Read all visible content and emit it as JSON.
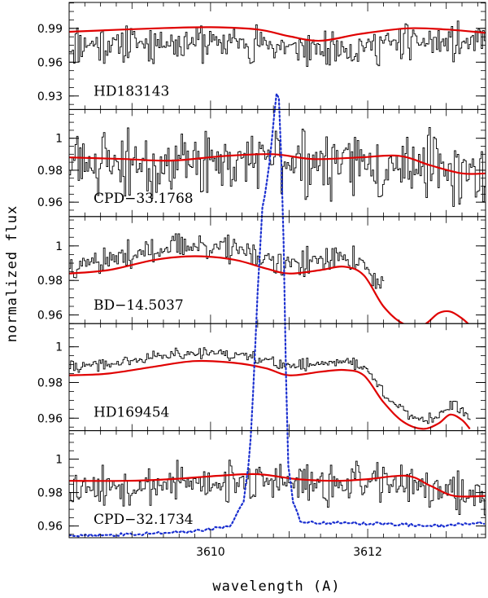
{
  "chart_data": {
    "type": "line",
    "xlabel": "wavelength (A)",
    "ylabel": "normalized flux",
    "xlim": [
      3608.2,
      3613.5
    ],
    "x_ticks": [
      3610,
      3612
    ],
    "grid": false,
    "colors": {
      "observed": "#000000",
      "model": "#e00000",
      "overlay": "#1a2fd0"
    },
    "panels": [
      {
        "label": "HD183143",
        "ylim": [
          0.918,
          1.013
        ],
        "y_ticks": [
          "0.93",
          "0.96",
          "0.99"
        ],
        "observed": {
          "style": "steps",
          "mean": 0.978,
          "noise": 0.026,
          "seed": 11
        },
        "model": [
          [
            3608.2,
            0.987
          ],
          [
            3609.3,
            0.99
          ],
          [
            3610.0,
            0.991
          ],
          [
            3610.6,
            0.989
          ],
          [
            3611.0,
            0.983
          ],
          [
            3611.4,
            0.979
          ],
          [
            3611.9,
            0.985
          ],
          [
            3612.5,
            0.99
          ],
          [
            3613.0,
            0.989
          ],
          [
            3613.5,
            0.986
          ]
        ]
      },
      {
        "label": "CPD−33.1768",
        "ylim": [
          0.951,
          1.018
        ],
        "y_ticks": [
          "0.96",
          "0.98",
          "1"
        ],
        "observed": {
          "style": "steps",
          "mean": 0.984,
          "noise": 0.032,
          "seed": 23
        },
        "model": [
          [
            3608.2,
            0.988
          ],
          [
            3608.9,
            0.987
          ],
          [
            3609.5,
            0.986
          ],
          [
            3610.2,
            0.989
          ],
          [
            3610.8,
            0.99
          ],
          [
            3611.3,
            0.987
          ],
          [
            3611.9,
            0.988
          ],
          [
            3612.4,
            0.989
          ],
          [
            3612.8,
            0.983
          ],
          [
            3613.2,
            0.978
          ],
          [
            3613.5,
            0.978
          ]
        ]
      },
      {
        "label": "BD−14.5037",
        "ylim": [
          0.955,
          1.017
        ],
        "y_ticks": [
          "0.96",
          "0.98",
          "1"
        ],
        "observed": {
          "style": "steps",
          "mean": 0.992,
          "noise": 0.012,
          "seed": 37,
          "x_end": 3612.2
        },
        "model": [
          [
            3608.2,
            0.984
          ],
          [
            3608.7,
            0.986
          ],
          [
            3609.3,
            0.992
          ],
          [
            3609.8,
            0.994
          ],
          [
            3610.3,
            0.992
          ],
          [
            3610.7,
            0.987
          ],
          [
            3611.0,
            0.984
          ],
          [
            3611.4,
            0.986
          ],
          [
            3611.7,
            0.988
          ],
          [
            3611.95,
            0.983
          ],
          [
            3612.2,
            0.965
          ],
          [
            3612.45,
            0.955
          ],
          [
            3612.7,
            0.954
          ],
          [
            3612.9,
            0.961
          ],
          [
            3613.05,
            0.962
          ],
          [
            3613.2,
            0.958
          ],
          [
            3613.3,
            0.954
          ]
        ]
      },
      {
        "label": "HD169454",
        "ylim": [
          0.953,
          1.013
        ],
        "y_ticks": [
          "0.96",
          "0.98",
          "1"
        ],
        "observed": {
          "style": "steps",
          "mean": 0.991,
          "noise": 0.005,
          "seed": 41,
          "x_end": 3613.3
        },
        "model": [
          [
            3608.2,
            0.984
          ],
          [
            3608.7,
            0.985
          ],
          [
            3609.3,
            0.989
          ],
          [
            3609.8,
            0.992
          ],
          [
            3610.3,
            0.991
          ],
          [
            3610.7,
            0.988
          ],
          [
            3611.0,
            0.984
          ],
          [
            3611.4,
            0.986
          ],
          [
            3611.7,
            0.987
          ],
          [
            3611.95,
            0.984
          ],
          [
            3612.2,
            0.969
          ],
          [
            3612.45,
            0.958
          ],
          [
            3612.7,
            0.954
          ],
          [
            3612.9,
            0.957
          ],
          [
            3613.05,
            0.962
          ],
          [
            3613.2,
            0.959
          ],
          [
            3613.3,
            0.954
          ]
        ]
      },
      {
        "label": "CPD−32.1734",
        "ylim": [
          0.953,
          1.017
        ],
        "y_ticks": [
          "0.96",
          "0.98",
          "1"
        ],
        "observed": {
          "style": "steps",
          "mean": 0.985,
          "noise": 0.018,
          "seed": 53
        },
        "model": [
          [
            3608.2,
            0.987
          ],
          [
            3608.9,
            0.987
          ],
          [
            3609.5,
            0.988
          ],
          [
            3610.1,
            0.99
          ],
          [
            3610.6,
            0.991
          ],
          [
            3611.1,
            0.988
          ],
          [
            3611.6,
            0.987
          ],
          [
            3612.0,
            0.988
          ],
          [
            3612.5,
            0.99
          ],
          [
            3612.8,
            0.984
          ],
          [
            3613.1,
            0.978
          ],
          [
            3613.5,
            0.978
          ]
        ]
      }
    ],
    "overlay": {
      "style": "dotted",
      "note_panel_spans": "drawn across all panels",
      "profile": [
        [
          3608.2,
          0.954
        ],
        [
          3609.0,
          0.955
        ],
        [
          3609.8,
          0.957
        ],
        [
          3610.25,
          0.96
        ],
        [
          3610.42,
          0.975
        ],
        [
          3610.52,
          1.01
        ],
        [
          3610.6,
          1.055
        ],
        [
          3610.66,
          1.082
        ],
        [
          3610.74,
          1.094
        ],
        [
          3610.8,
          1.11
        ],
        [
          3610.86,
          1.125
        ],
        [
          3610.92,
          1.085
        ],
        [
          3610.98,
          1.0
        ],
        [
          3611.05,
          0.975
        ],
        [
          3611.15,
          0.962
        ],
        [
          3611.6,
          0.962
        ],
        [
          3612.4,
          0.961
        ],
        [
          3612.9,
          0.96
        ],
        [
          3613.5,
          0.962
        ]
      ]
    }
  }
}
